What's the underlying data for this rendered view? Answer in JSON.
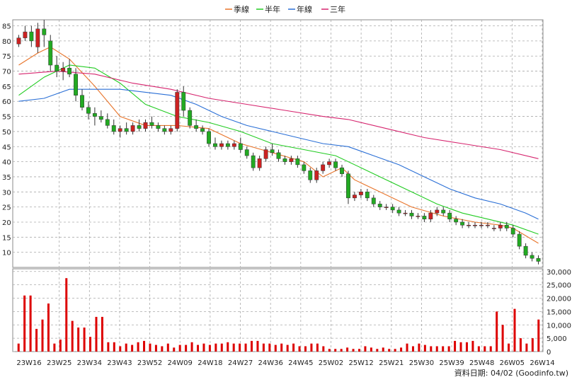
{
  "legend": [
    {
      "name": "季線",
      "color": "#e8742a"
    },
    {
      "name": "半年",
      "color": "#22cc22"
    },
    {
      "name": "年線",
      "color": "#2a6fd6"
    },
    {
      "name": "三年",
      "color": "#d6246e"
    }
  ],
  "footer": "資料日期: 04/02  (Goodinfo.tw)",
  "chart_data": [
    {
      "type": "candlestick",
      "ylim": [
        5,
        87
      ],
      "yticks": [
        10,
        15,
        20,
        25,
        30,
        35,
        40,
        45,
        50,
        55,
        60,
        65,
        70,
        75,
        80,
        85
      ],
      "grid": true,
      "legend_position": "top-center",
      "x_tick_labels": [
        "23W16",
        "23W25",
        "23W34",
        "23W43",
        "23W52",
        "24W09",
        "24W18",
        "24W27",
        "24W36",
        "24W45",
        "25W02",
        "25W12",
        "25W21",
        "25W30",
        "25W39",
        "25W48",
        "26W05",
        "26W14"
      ],
      "colors": {
        "up": "#cc2222",
        "down": "#22aa22",
        "wick": "#333333"
      },
      "ohlc": [
        [
          79,
          82,
          78,
          81
        ],
        [
          81,
          85,
          80,
          83
        ],
        [
          83,
          85,
          78,
          80
        ],
        [
          78,
          86,
          76,
          84
        ],
        [
          84,
          87,
          78,
          82
        ],
        [
          80,
          82,
          70,
          72
        ],
        [
          72,
          75,
          68,
          70
        ],
        [
          70,
          73,
          67,
          71
        ],
        [
          71,
          74,
          68,
          69
        ],
        [
          69,
          71,
          60,
          62
        ],
        [
          62,
          64,
          57,
          58
        ],
        [
          58,
          60,
          54,
          56
        ],
        [
          56,
          58,
          52,
          55
        ],
        [
          55,
          57,
          53,
          54
        ],
        [
          54,
          56,
          51,
          52
        ],
        [
          52,
          54,
          49,
          50
        ],
        [
          50,
          52,
          48,
          51
        ],
        [
          51,
          53,
          49,
          50
        ],
        [
          50,
          53,
          49,
          52
        ],
        [
          52,
          54,
          50,
          51
        ],
        [
          51,
          54,
          50,
          53
        ],
        [
          53,
          55,
          51,
          52
        ],
        [
          52,
          53,
          50,
          51
        ],
        [
          51,
          52,
          49,
          50
        ],
        [
          50,
          52,
          49,
          51
        ],
        [
          51,
          64,
          50,
          63
        ],
        [
          63,
          65,
          55,
          57
        ],
        [
          57,
          58,
          51,
          52
        ],
        [
          52,
          54,
          50,
          51
        ],
        [
          51,
          52,
          49,
          50
        ],
        [
          50,
          51,
          45,
          46
        ],
        [
          46,
          48,
          44,
          45
        ],
        [
          45,
          47,
          44,
          46
        ],
        [
          46,
          47,
          44,
          45
        ],
        [
          45,
          47,
          44,
          46
        ],
        [
          46,
          48,
          43,
          44
        ],
        [
          44,
          45,
          41,
          42
        ],
        [
          42,
          43,
          37,
          38
        ],
        [
          38,
          42,
          37,
          41
        ],
        [
          41,
          45,
          40,
          44
        ],
        [
          44,
          46,
          42,
          43
        ],
        [
          43,
          44,
          40,
          41
        ],
        [
          41,
          42,
          39,
          40
        ],
        [
          40,
          42,
          39,
          41
        ],
        [
          41,
          42,
          38,
          39
        ],
        [
          39,
          40,
          36,
          37
        ],
        [
          37,
          38,
          33,
          34
        ],
        [
          34,
          38,
          33,
          37
        ],
        [
          37,
          40,
          36,
          39
        ],
        [
          39,
          41,
          38,
          40
        ],
        [
          40,
          41,
          37,
          38
        ],
        [
          38,
          39,
          35,
          36
        ],
        [
          36,
          37,
          26,
          28
        ],
        [
          28,
          30,
          27,
          29
        ],
        [
          29,
          31,
          28,
          30
        ],
        [
          30,
          31,
          27,
          28
        ],
        [
          28,
          29,
          25,
          26
        ],
        [
          26,
          27,
          24,
          25
        ],
        [
          25,
          26,
          24,
          25
        ],
        [
          25,
          26,
          23,
          24
        ],
        [
          24,
          25,
          22,
          23
        ],
        [
          23,
          24,
          22,
          23
        ],
        [
          23,
          24,
          21,
          22
        ],
        [
          22,
          23,
          21,
          22
        ],
        [
          22,
          23,
          20,
          21
        ],
        [
          21,
          24,
          20,
          23
        ],
        [
          23,
          25,
          22,
          24
        ],
        [
          24,
          25,
          22,
          23
        ],
        [
          23,
          24,
          20,
          21
        ],
        [
          21,
          22,
          19,
          20
        ],
        [
          20,
          21,
          18,
          19
        ],
        [
          19,
          20,
          18,
          19
        ],
        [
          19,
          20,
          18,
          19
        ],
        [
          19,
          20,
          18,
          19
        ],
        [
          19,
          20,
          18,
          19
        ],
        [
          18,
          19,
          17,
          18
        ],
        [
          18,
          20,
          17,
          19
        ],
        [
          19,
          20,
          17,
          18
        ],
        [
          18,
          19,
          15,
          16
        ],
        [
          16,
          17,
          11,
          12
        ],
        [
          12,
          13,
          8,
          9
        ],
        [
          9,
          10,
          7,
          8
        ],
        [
          8,
          9,
          6,
          7
        ]
      ],
      "moving_averages": [
        {
          "name": "季線",
          "color": "#e8742a",
          "points": [
            [
              0,
              72
            ],
            [
              3,
              76
            ],
            [
              5,
              78
            ],
            [
              8,
              74
            ],
            [
              12,
              65
            ],
            [
              16,
              55
            ],
            [
              20,
              52
            ],
            [
              25,
              52
            ],
            [
              30,
              51
            ],
            [
              35,
              46
            ],
            [
              40,
              43
            ],
            [
              45,
              40
            ],
            [
              48,
              35
            ],
            [
              51,
              38
            ],
            [
              53,
              34
            ],
            [
              57,
              30
            ],
            [
              62,
              25
            ],
            [
              67,
              22
            ],
            [
              72,
              20
            ],
            [
              76,
              19
            ],
            [
              78,
              18
            ],
            [
              82,
              13
            ]
          ]
        },
        {
          "name": "半年",
          "color": "#22cc22",
          "points": [
            [
              0,
              62
            ],
            [
              4,
              68
            ],
            [
              8,
              72
            ],
            [
              12,
              71
            ],
            [
              16,
              66
            ],
            [
              20,
              59
            ],
            [
              25,
              55
            ],
            [
              30,
              53
            ],
            [
              35,
              50
            ],
            [
              40,
              46
            ],
            [
              45,
              44
            ],
            [
              50,
              42
            ],
            [
              54,
              38
            ],
            [
              58,
              34
            ],
            [
              62,
              30
            ],
            [
              66,
              26
            ],
            [
              70,
              23
            ],
            [
              74,
              21
            ],
            [
              78,
              19
            ],
            [
              82,
              16
            ]
          ]
        },
        {
          "name": "年線",
          "color": "#2a6fd6",
          "points": [
            [
              0,
              60
            ],
            [
              4,
              61
            ],
            [
              8,
              64
            ],
            [
              12,
              64
            ],
            [
              16,
              64
            ],
            [
              20,
              63
            ],
            [
              24,
              62
            ],
            [
              28,
              59
            ],
            [
              32,
              55
            ],
            [
              36,
              52
            ],
            [
              40,
              50
            ],
            [
              44,
              48
            ],
            [
              48,
              46
            ],
            [
              52,
              45
            ],
            [
              56,
              42
            ],
            [
              60,
              39
            ],
            [
              64,
              35
            ],
            [
              68,
              31
            ],
            [
              72,
              28
            ],
            [
              76,
              26
            ],
            [
              80,
              23
            ],
            [
              82,
              21
            ]
          ]
        },
        {
          "name": "三年",
          "color": "#d6246e",
          "points": [
            [
              0,
              69
            ],
            [
              6,
              70
            ],
            [
              12,
              69
            ],
            [
              18,
              66
            ],
            [
              24,
              64
            ],
            [
              30,
              61
            ],
            [
              36,
              59
            ],
            [
              42,
              57
            ],
            [
              48,
              55
            ],
            [
              52,
              54
            ],
            [
              58,
              51
            ],
            [
              64,
              48
            ],
            [
              70,
              46
            ],
            [
              76,
              44
            ],
            [
              82,
              41
            ]
          ]
        }
      ]
    },
    {
      "type": "bar",
      "series": [
        {
          "values": [
            3000,
            21000,
            21000,
            8500,
            12000,
            18000,
            3000,
            4500,
            27500,
            11500,
            9000,
            9000,
            5500,
            13000,
            13000,
            3500,
            3500,
            2000,
            3000,
            2500,
            3500,
            4000,
            3000,
            2500,
            2000,
            3000,
            1500,
            2500,
            2500,
            3500,
            2500,
            3000,
            2500,
            3000,
            3000,
            3500,
            3000,
            3000,
            3000,
            4000,
            4000,
            3000,
            3000,
            2500,
            3000,
            2500,
            3000,
            2000,
            2000,
            3000,
            3000,
            2000,
            1000,
            1000,
            1000,
            1500,
            1000,
            1000,
            2000,
            1500,
            1000,
            1500,
            1000,
            1000,
            1500,
            3000,
            2000,
            3000,
            2500,
            2000,
            2000,
            2000,
            2000,
            4000,
            3500,
            3500,
            4000,
            2000,
            2000,
            2000,
            15000,
            10000,
            3000,
            16000,
            5000,
            3000,
            5000,
            12000
          ]
        }
      ],
      "yticks": [
        0,
        5000,
        10000,
        15000,
        20000,
        25000,
        30000
      ],
      "ytick_labels": [
        "0",
        "5,000",
        "10,000",
        "15,000",
        "20,000",
        "25,000",
        "30,000"
      ],
      "ylim": [
        0,
        31000
      ],
      "color": "#dd0000",
      "grid": true
    }
  ]
}
